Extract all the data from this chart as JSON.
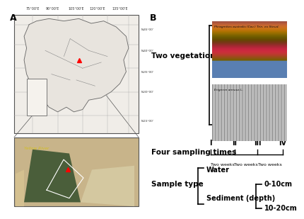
{
  "panel_A_label": "A",
  "panel_B_label": "B",
  "veg_label": "Two vegetation communiyies",
  "veg_species_1": "Phragmites australis (Cav.) Trin. ex Steud.",
  "veg_species_2": "Erigeron annuus L.",
  "sampling_label": "Four sampling times",
  "sampling_times": [
    "I",
    "II",
    "III",
    "IV"
  ],
  "sampling_intervals": [
    "Two weeks",
    "Two weeks",
    "Two weeks"
  ],
  "sample_type_label": "Sample type",
  "sample_water": "Water",
  "sample_sediment": "Sediment (depth)",
  "sample_depth_1": "0-10cm",
  "sample_depth_2": "10-20cm",
  "bg_color": "#ffffff",
  "text_color": "#000000",
  "label_fontsize": 7,
  "title_fontsize": 7,
  "bold_fontsize": 7.5
}
